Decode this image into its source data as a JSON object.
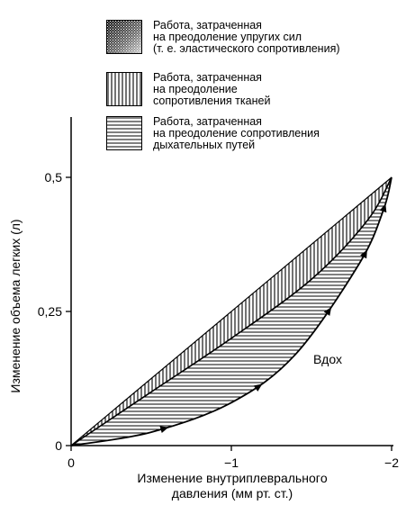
{
  "legend": [
    {
      "lines": [
        "Работа, затраченная",
        "на преодоление упругих сил",
        "(т. е. эластического сопротивления)"
      ],
      "fill": "stipple"
    },
    {
      "lines": [
        "Работа, затраченная",
        "на преодоление",
        "сопротивления тканей"
      ],
      "fill": "vertical-hatch"
    },
    {
      "lines": [
        "Работа, затраченная",
        "на преодоление сопротивления",
        "дыхательных путей"
      ],
      "fill": "horizontal-hatch"
    }
  ],
  "chart_data": {
    "type": "line",
    "title": "",
    "xlabel_lines": [
      "Изменение внутриплевральногo",
      "давления (мм рт. ст.)"
    ],
    "ylabel": "Изменение объема легких (л)",
    "xlim": [
      0,
      -2
    ],
    "ylim": [
      0,
      0.5
    ],
    "x_ticks": [
      {
        "value": 0,
        "label": "0"
      },
      {
        "value": -1,
        "label": "−1"
      },
      {
        "value": -2,
        "label": "−2"
      }
    ],
    "y_ticks": [
      {
        "value": 0,
        "label": "0"
      },
      {
        "value": 0.25,
        "label": "0,25"
      },
      {
        "value": 0.5,
        "label": "0,5"
      }
    ],
    "annotation": "Вдох",
    "series": [
      {
        "role": "inspiration",
        "x": [
          0,
          -0.5,
          -1.0,
          -1.4,
          -1.8,
          -1.95,
          -2.0
        ],
        "y": [
          0,
          0.025,
          0.08,
          0.17,
          0.34,
          0.44,
          0.5
        ]
      },
      {
        "role": "tissue-resistance-boundary",
        "x": [
          0,
          -0.5,
          -1.0,
          -1.5,
          -1.85,
          -2.0
        ],
        "y": [
          0,
          0.1,
          0.2,
          0.31,
          0.42,
          0.5
        ]
      },
      {
        "role": "compliance-line",
        "x": [
          0,
          -2.0
        ],
        "y": [
          0,
          0.5
        ]
      }
    ]
  }
}
